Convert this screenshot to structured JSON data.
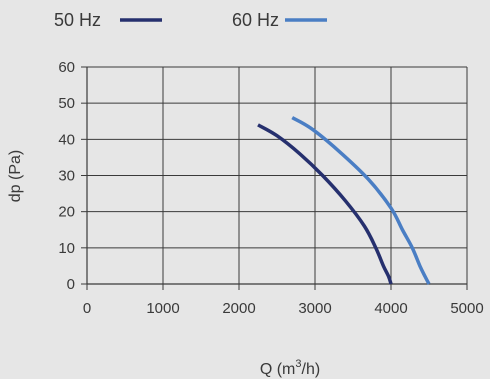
{
  "chart_data": {
    "type": "line",
    "title": "",
    "xlabel": "Q (m",
    "xlabel_sup": "3",
    "xlabel_suffix": "/h)",
    "ylabel": "dp (Pa)",
    "xlim": [
      0,
      5000
    ],
    "ylim": [
      0,
      60
    ],
    "xticks": [
      "0",
      "1000",
      "2000",
      "3000",
      "4000",
      "5000"
    ],
    "yticks": [
      "0",
      "10",
      "20",
      "30",
      "40",
      "50",
      "60"
    ],
    "grid": true,
    "legend_position": "top",
    "series": [
      {
        "name": "50 Hz",
        "color": "#26306e",
        "x": [
          2250,
          2500,
          2800,
          3100,
          3400,
          3650,
          3800,
          3900,
          3970,
          4000
        ],
        "y": [
          44,
          41,
          36,
          30,
          23,
          16,
          10,
          5,
          2,
          0
        ]
      },
      {
        "name": "60 Hz",
        "color": "#4a7ec4",
        "x": [
          2700,
          2950,
          3300,
          3700,
          4000,
          4150,
          4280,
          4380,
          4450,
          4500
        ],
        "y": [
          46,
          43,
          37,
          29,
          21,
          15,
          10,
          5,
          2,
          0
        ]
      }
    ]
  }
}
